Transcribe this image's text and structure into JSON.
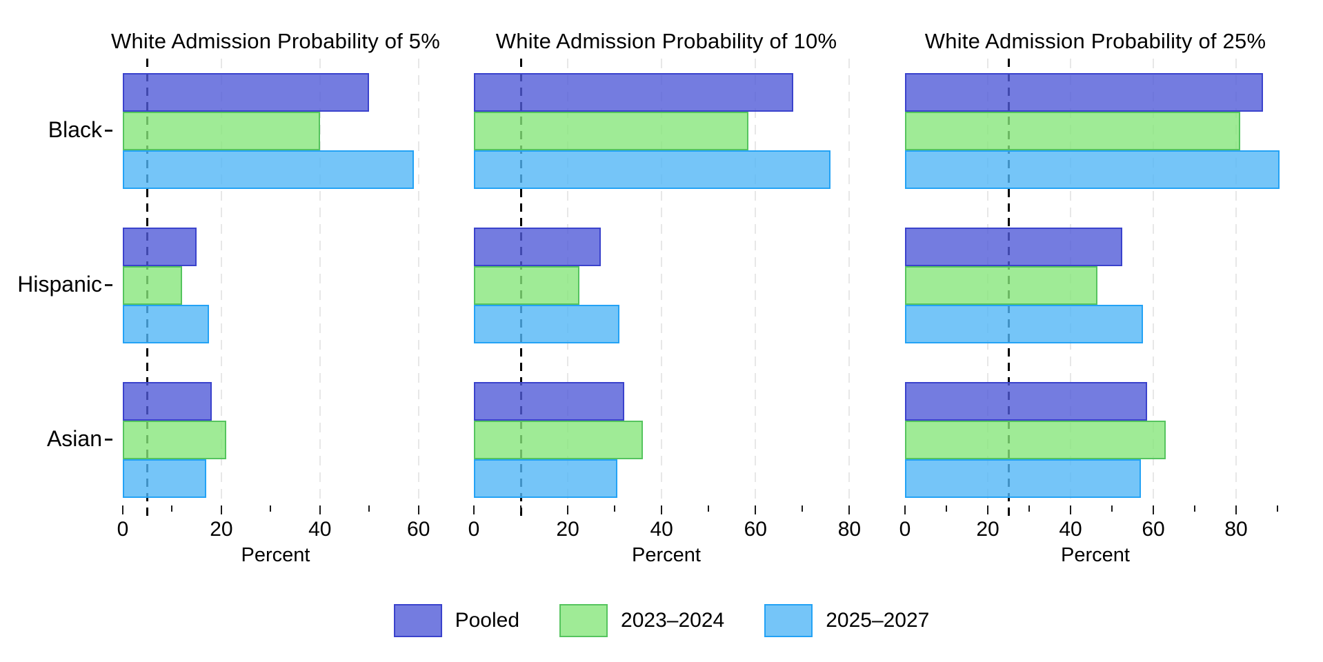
{
  "chart_data": {
    "type": "bar",
    "orientation": "horizontal",
    "categories": [
      "Black",
      "Hispanic",
      "Asian"
    ],
    "xlabel": "Percent",
    "series_names": [
      "Pooled",
      "2023–2024",
      "2025–2027"
    ],
    "series_colors": [
      {
        "fill": "rgba(81,91,216,0.8)",
        "stroke": "#3A42CC"
      },
      {
        "fill": "rgba(135,230,124,0.8)",
        "stroke": "#55C45E"
      },
      {
        "fill": "rgba(82,182,246,0.8)",
        "stroke": "#23A2F5"
      }
    ],
    "gridline_color": "#E7E7E7",
    "reference_line_color": "#000000",
    "grid": "dashed vertical at major ticks",
    "panels": [
      {
        "title": "White Admission Probability of 5%",
        "reference_line": 5,
        "xlim": [
          0,
          62
        ],
        "major_ticks": [
          0,
          20,
          40,
          60
        ],
        "minor_tick_step": 10,
        "tick_end": 60,
        "series": [
          {
            "name": "Pooled",
            "values": [
              50,
              15,
              18
            ]
          },
          {
            "name": "2023–2024",
            "values": [
              40,
              12,
              21
            ]
          },
          {
            "name": "2025–2027",
            "values": [
              59,
              17.5,
              17
            ]
          }
        ]
      },
      {
        "title": "White Admission Probability of 10%",
        "reference_line": 10,
        "xlim": [
          0,
          82
        ],
        "major_ticks": [
          0,
          20,
          40,
          60,
          80
        ],
        "minor_tick_step": 10,
        "tick_end": 80,
        "series": [
          {
            "name": "Pooled",
            "values": [
              68,
              27,
              32
            ]
          },
          {
            "name": "2023–2024",
            "values": [
              58.5,
              22.5,
              36
            ]
          },
          {
            "name": "2025–2027",
            "values": [
              76,
              31,
              30.5
            ]
          }
        ]
      },
      {
        "title": "White Admission Probability of 25%",
        "reference_line": 25,
        "xlim": [
          0,
          92
        ],
        "major_ticks": [
          0,
          20,
          40,
          60,
          80
        ],
        "minor_tick_step": 10,
        "tick_end": 90,
        "series": [
          {
            "name": "Pooled",
            "values": [
              86.5,
              52.5,
              58.5
            ]
          },
          {
            "name": "2023–2024",
            "values": [
              81,
              46.5,
              63
            ]
          },
          {
            "name": "2025–2027",
            "values": [
              90.5,
              57.5,
              57
            ]
          }
        ]
      }
    ],
    "legend": {
      "position": "bottom",
      "entries": [
        "Pooled",
        "2023–2024",
        "2025–2027"
      ]
    }
  }
}
